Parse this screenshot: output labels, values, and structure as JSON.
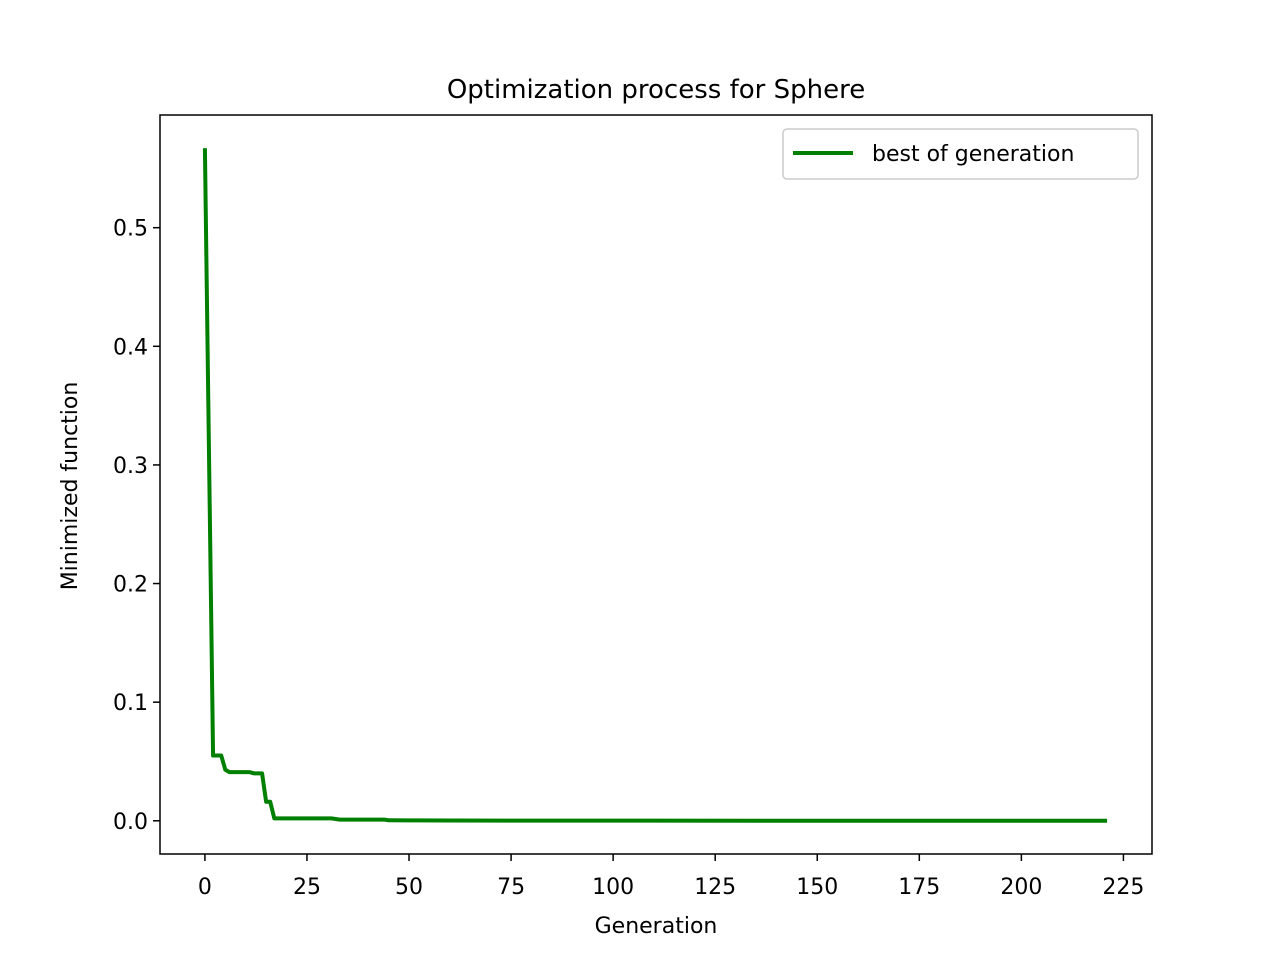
{
  "chart_data": {
    "type": "line",
    "title": "Optimization process for Sphere",
    "xlabel": "Generation",
    "ylabel": "Minimized function",
    "xlim": [
      -11,
      232
    ],
    "ylim": [
      -0.028,
      0.595
    ],
    "xticks": [
      0,
      25,
      50,
      75,
      100,
      125,
      150,
      175,
      200,
      225
    ],
    "yticks": [
      0.0,
      0.1,
      0.2,
      0.3,
      0.4,
      0.5
    ],
    "ytick_labels": [
      "0.0",
      "0.1",
      "0.2",
      "0.3",
      "0.4",
      "0.5"
    ],
    "grid": false,
    "legend_position": "top-right",
    "series": [
      {
        "name": "best of generation",
        "color": "#008000",
        "x": [
          0,
          1,
          2,
          3,
          4,
          5,
          6,
          7,
          8,
          9,
          10,
          11,
          12,
          13,
          14,
          15,
          16,
          17,
          18,
          20,
          25,
          31,
          32,
          33,
          40,
          44,
          45,
          50,
          60,
          80,
          100,
          150,
          200,
          221
        ],
        "y": [
          0.567,
          0.31,
          0.055,
          0.055,
          0.055,
          0.043,
          0.041,
          0.041,
          0.041,
          0.041,
          0.041,
          0.041,
          0.04,
          0.04,
          0.04,
          0.016,
          0.016,
          0.002,
          0.002,
          0.002,
          0.002,
          0.002,
          0.0015,
          0.001,
          0.001,
          0.001,
          0.0004,
          0.0003,
          0.0002,
          0.0001,
          0.0001,
          0.0,
          0.0,
          0.0
        ]
      }
    ]
  }
}
